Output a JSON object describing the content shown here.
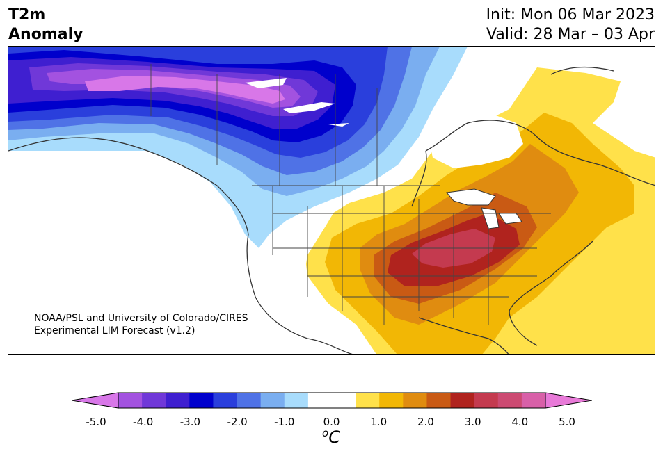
{
  "header": {
    "title_line1": "T2m",
    "title_line2": "Anomaly",
    "init_text": "Init: Mon 06 Mar 2023",
    "valid_text": "Valid: 28 Mar – 03 Apr"
  },
  "credit": {
    "line1": "NOAA/PSL and University of Colorado/CIRES",
    "line2": "Experimental LIM Forecast (v1.2)"
  },
  "colorbar": {
    "ticks": [
      "-5.0",
      "-4.0",
      "-3.0",
      "-2.0",
      "-1.0",
      "0.0",
      "1.0",
      "2.0",
      "3.0",
      "4.0",
      "5.0"
    ],
    "unit_super": "o",
    "unit_main": "C",
    "colors": [
      "#d877e8",
      "#a352e0",
      "#7038d8",
      "#3f1fd0",
      "#0000cc",
      "#2a3fdc",
      "#4f72e6",
      "#7aaef0",
      "#a8dcfc",
      "#ffffff",
      "#ffffff",
      "#ffe14a",
      "#f2b705",
      "#e08c10",
      "#c95a14",
      "#b0231e",
      "#c43a4f",
      "#cc4a72",
      "#d860a8",
      "#e87ad8"
    ]
  }
}
